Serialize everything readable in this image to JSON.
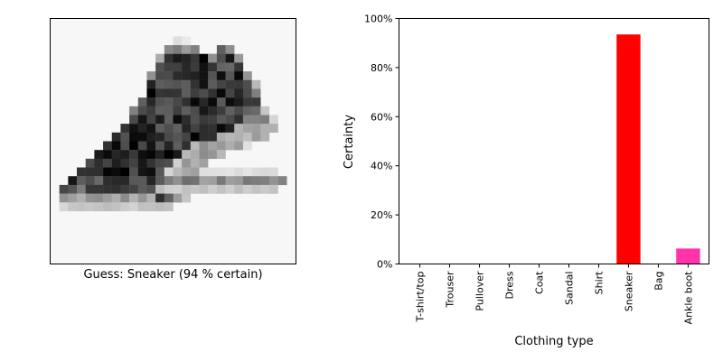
{
  "guess_caption": "Guess: Sneaker (94 % certain)",
  "image": {
    "subject": "sneaker",
    "grid_size": 28,
    "background_gray": 247,
    "strips": [
      {
        "row": 2,
        "x0": 14.5,
        "x1": 15.5,
        "v": 0.15
      },
      {
        "row": 3,
        "x0": 13.0,
        "x1": 17.0,
        "v": 0.45
      },
      {
        "row": 3,
        "x0": 19.0,
        "x1": 21.0,
        "v": 0.55
      },
      {
        "row": 4,
        "x0": 12.5,
        "x1": 18.5,
        "v": 0.85
      },
      {
        "row": 4,
        "x0": 18.5,
        "x1": 21.5,
        "v": 0.8
      },
      {
        "row": 5,
        "x0": 12.0,
        "x1": 22.0,
        "v": 0.75
      },
      {
        "row": 6,
        "x0": 11.5,
        "x1": 22.5,
        "v": 0.8
      },
      {
        "row": 7,
        "x0": 11.0,
        "x1": 23.0,
        "v": 0.8
      },
      {
        "row": 7,
        "x0": 23.0,
        "x1": 24.0,
        "v": 0.3
      },
      {
        "row": 8,
        "x0": 11.0,
        "x1": 23.5,
        "v": 0.82
      },
      {
        "row": 9,
        "x0": 10.0,
        "x1": 24.0,
        "v": 0.8
      },
      {
        "row": 10,
        "x0": 9.5,
        "x1": 24.5,
        "v": 0.75
      },
      {
        "row": 11,
        "x0": 9.0,
        "x1": 22.0,
        "v": 0.78
      },
      {
        "row": 11,
        "x0": 22.0,
        "x1": 25.5,
        "v": 0.4
      },
      {
        "row": 12,
        "x0": 8.0,
        "x1": 21.0,
        "v": 0.8
      },
      {
        "row": 12,
        "x0": 21.0,
        "x1": 26.0,
        "v": 0.35
      },
      {
        "row": 13,
        "x0": 7.0,
        "x1": 19.0,
        "v": 0.82
      },
      {
        "row": 13,
        "x0": 19.0,
        "x1": 25.0,
        "v": 0.3
      },
      {
        "row": 14,
        "x0": 6.0,
        "x1": 16.5,
        "v": 0.8
      },
      {
        "row": 14,
        "x0": 16.5,
        "x1": 22.5,
        "v": 0.35
      },
      {
        "row": 15,
        "x0": 5.0,
        "x1": 15.5,
        "v": 0.82
      },
      {
        "row": 15,
        "x0": 15.5,
        "x1": 19.5,
        "v": 0.35
      },
      {
        "row": 16,
        "x0": 4.0,
        "x1": 14.5,
        "v": 0.8
      },
      {
        "row": 16,
        "x0": 14.5,
        "x1": 18.0,
        "v": 0.35
      },
      {
        "row": 17,
        "x0": 3.0,
        "x1": 13.5,
        "v": 0.82
      },
      {
        "row": 17,
        "x0": 13.5,
        "x1": 17.0,
        "v": 0.3
      },
      {
        "row": 17,
        "x0": 17.0,
        "x1": 26.0,
        "v": 0.1
      },
      {
        "row": 18,
        "x0": 2.0,
        "x1": 13.0,
        "v": 0.75
      },
      {
        "row": 18,
        "x0": 13.0,
        "x1": 27.0,
        "v": 0.45
      },
      {
        "row": 19,
        "x0": 1.0,
        "x1": 12.0,
        "v": 0.65
      },
      {
        "row": 19,
        "x0": 12.0,
        "x1": 26.0,
        "v": 0.2
      },
      {
        "row": 20,
        "x0": 1.0,
        "x1": 15.5,
        "v": 0.35
      },
      {
        "row": 20,
        "x0": 11.5,
        "x1": 14.0,
        "v": 0.8
      },
      {
        "row": 21,
        "x0": 1.5,
        "x1": 14.0,
        "v": 0.2
      }
    ]
  },
  "chart_data": {
    "type": "bar",
    "categories": [
      "T-shirt/top",
      "Trouser",
      "Pullover",
      "Dress",
      "Coat",
      "Sandal",
      "Shirt",
      "Sneaker",
      "Bag",
      "Ankle boot"
    ],
    "values": [
      0,
      0,
      0,
      0,
      0,
      0,
      0,
      93.5,
      0,
      6.3
    ],
    "bar_colors": [
      "#ff0000",
      "#ff0000",
      "#ff0000",
      "#ff0000",
      "#ff0000",
      "#ff0000",
      "#ff0000",
      "#ff0000",
      "#ff0000",
      "#ff33aa"
    ],
    "xlabel": "Clothing type",
    "ylabel": "Certainty",
    "ylim": [
      0,
      100
    ],
    "yticks": [
      0,
      20,
      40,
      60,
      80,
      100
    ],
    "ytick_labels": [
      "0%",
      "20%",
      "40%",
      "60%",
      "80%",
      "100%"
    ],
    "grid": false,
    "legend": "none"
  }
}
